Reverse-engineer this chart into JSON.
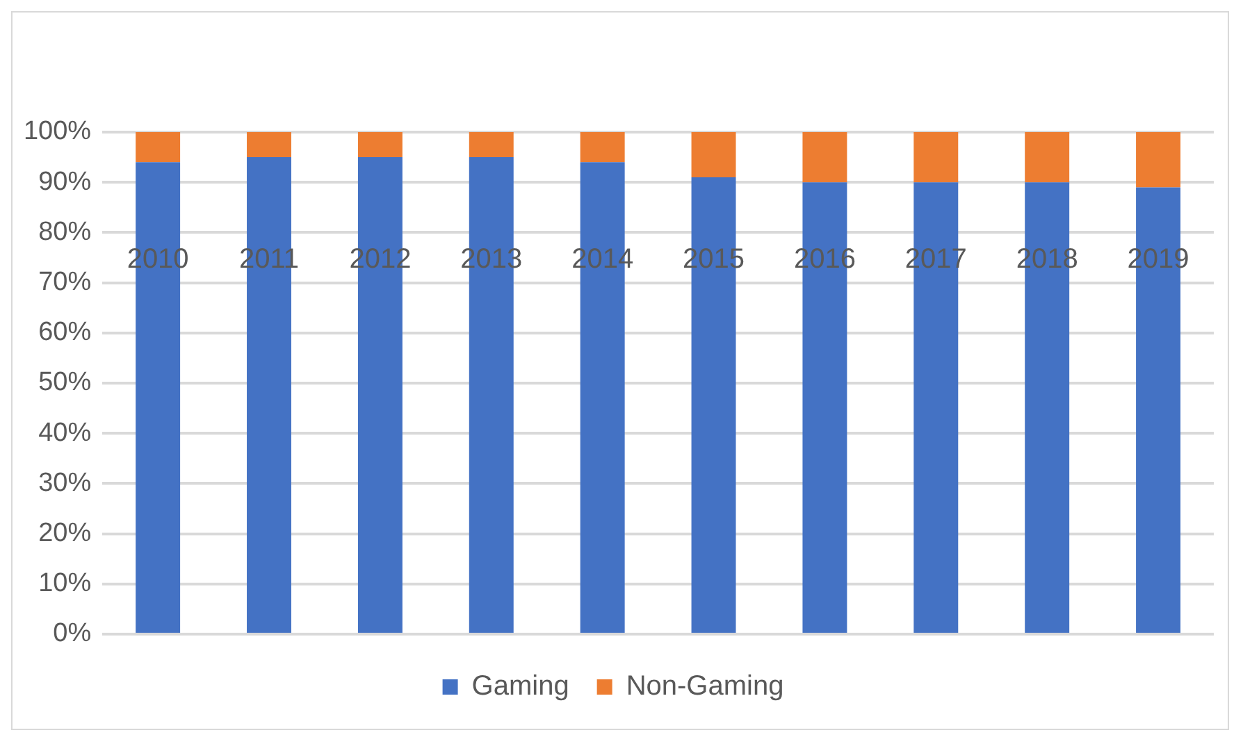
{
  "chart_data": {
    "type": "bar",
    "stacked": true,
    "categories": [
      "2010",
      "2011",
      "2012",
      "2013",
      "2014",
      "2015",
      "2016",
      "2017",
      "2018",
      "2019"
    ],
    "series": [
      {
        "name": "Gaming",
        "color": "#4472c4",
        "values": [
          94,
          95,
          95,
          95,
          94,
          91,
          90,
          90,
          90,
          89
        ]
      },
      {
        "name": "Non-Gaming",
        "color": "#ed7d31",
        "values": [
          6,
          5,
          5,
          5,
          6,
          9,
          10,
          10,
          10,
          11
        ]
      }
    ],
    "ylim": [
      0,
      100
    ],
    "yticks": [
      {
        "value": 0,
        "label": "0%"
      },
      {
        "value": 10,
        "label": "10%"
      },
      {
        "value": 20,
        "label": "20%"
      },
      {
        "value": 30,
        "label": "30%"
      },
      {
        "value": 40,
        "label": "40%"
      },
      {
        "value": 50,
        "label": "50%"
      },
      {
        "value": 60,
        "label": "60%"
      },
      {
        "value": 70,
        "label": "70%"
      },
      {
        "value": 80,
        "label": "80%"
      },
      {
        "value": 90,
        "label": "90%"
      },
      {
        "value": 100,
        "label": "100%"
      }
    ],
    "grid": "y",
    "legend": "bottom"
  }
}
